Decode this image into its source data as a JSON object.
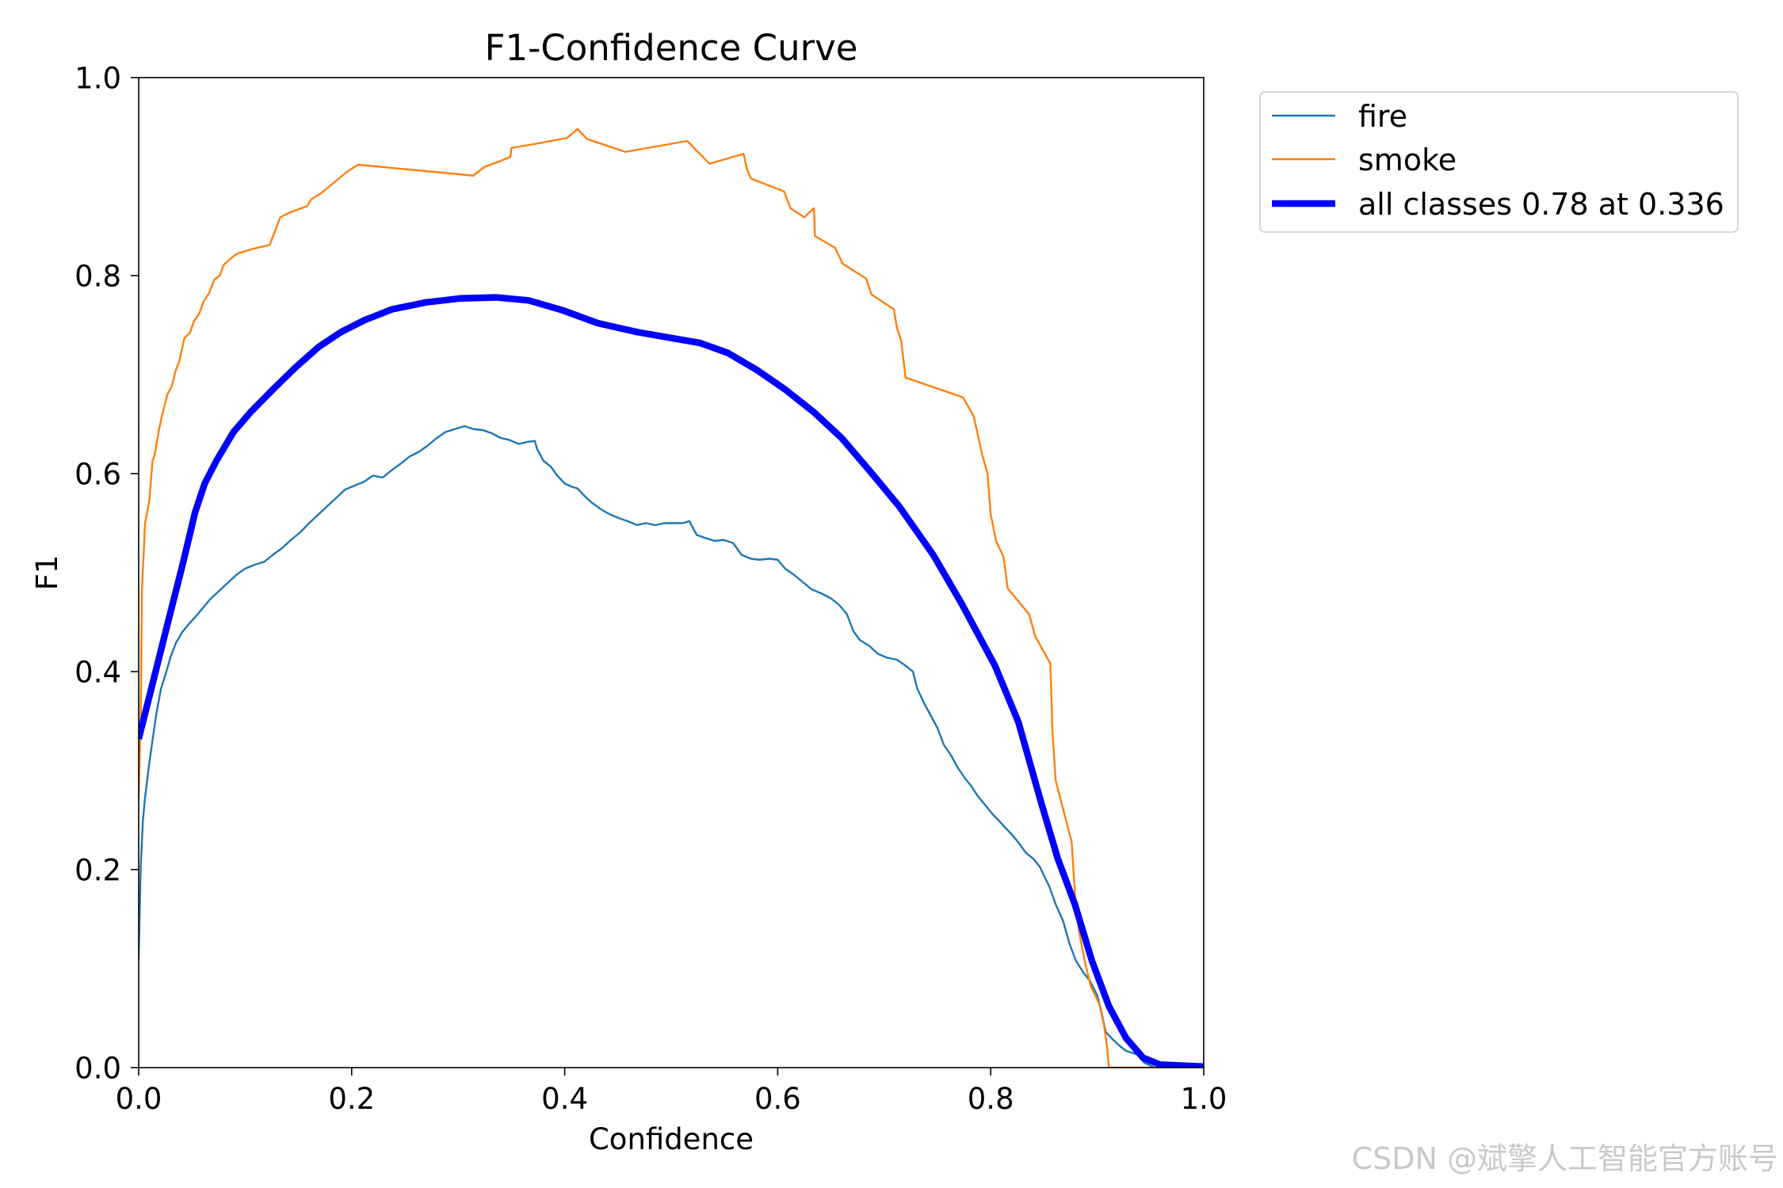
{
  "chart_data": {
    "type": "line",
    "title": "F1-Confidence Curve",
    "xlabel": "Confidence",
    "ylabel": "F1",
    "xlim": [
      0,
      1
    ],
    "ylim": [
      0,
      1
    ],
    "xticks": [
      0,
      0.2,
      0.4,
      0.6,
      0.8,
      1.0
    ],
    "xtick_labels": [
      "0.0",
      "0.2",
      "0.4",
      "0.6",
      "0.8",
      "1.0"
    ],
    "yticks": [
      0,
      0.2,
      0.4,
      0.6,
      0.8,
      1.0
    ],
    "ytick_labels": [
      "0.0",
      "0.2",
      "0.4",
      "0.6",
      "0.8",
      "1.0"
    ],
    "grid": false,
    "legend_loc": "upper-right-outside",
    "series": [
      {
        "name": "fire",
        "color": "#1f77b4",
        "points": [
          [
            0.0,
            0.11
          ],
          [
            0.002,
            0.205
          ],
          [
            0.004,
            0.25
          ],
          [
            0.006,
            0.273
          ],
          [
            0.01,
            0.308
          ],
          [
            0.013,
            0.331
          ],
          [
            0.017,
            0.36
          ],
          [
            0.021,
            0.383
          ],
          [
            0.026,
            0.4
          ],
          [
            0.03,
            0.415
          ],
          [
            0.035,
            0.429
          ],
          [
            0.041,
            0.44
          ],
          [
            0.047,
            0.448
          ],
          [
            0.053,
            0.455
          ],
          [
            0.06,
            0.464
          ],
          [
            0.067,
            0.473
          ],
          [
            0.075,
            0.481
          ],
          [
            0.083,
            0.489
          ],
          [
            0.092,
            0.498
          ],
          [
            0.1,
            0.504
          ],
          [
            0.109,
            0.508
          ],
          [
            0.118,
            0.511
          ],
          [
            0.126,
            0.518
          ],
          [
            0.135,
            0.525
          ],
          [
            0.143,
            0.533
          ],
          [
            0.152,
            0.541
          ],
          [
            0.16,
            0.55
          ],
          [
            0.169,
            0.559
          ],
          [
            0.177,
            0.567
          ],
          [
            0.186,
            0.576
          ],
          [
            0.194,
            0.584
          ],
          [
            0.203,
            0.588
          ],
          [
            0.212,
            0.592
          ],
          [
            0.22,
            0.598
          ],
          [
            0.229,
            0.596
          ],
          [
            0.237,
            0.603
          ],
          [
            0.246,
            0.61
          ],
          [
            0.254,
            0.617
          ],
          [
            0.263,
            0.622
          ],
          [
            0.271,
            0.628
          ],
          [
            0.28,
            0.636
          ],
          [
            0.288,
            0.642
          ],
          [
            0.297,
            0.645
          ],
          [
            0.306,
            0.648
          ],
          [
            0.314,
            0.645
          ],
          [
            0.323,
            0.644
          ],
          [
            0.331,
            0.641
          ],
          [
            0.34,
            0.636
          ],
          [
            0.348,
            0.634
          ],
          [
            0.357,
            0.63
          ],
          [
            0.365,
            0.632
          ],
          [
            0.372,
            0.633
          ],
          [
            0.374,
            0.625
          ],
          [
            0.38,
            0.613
          ],
          [
            0.387,
            0.607
          ],
          [
            0.393,
            0.598
          ],
          [
            0.4,
            0.59
          ],
          [
            0.406,
            0.587
          ],
          [
            0.412,
            0.585
          ],
          [
            0.419,
            0.577
          ],
          [
            0.425,
            0.571
          ],
          [
            0.434,
            0.564
          ],
          [
            0.442,
            0.559
          ],
          [
            0.451,
            0.555
          ],
          [
            0.459,
            0.552
          ],
          [
            0.468,
            0.548
          ],
          [
            0.476,
            0.55
          ],
          [
            0.485,
            0.548
          ],
          [
            0.494,
            0.55
          ],
          [
            0.502,
            0.55
          ],
          [
            0.511,
            0.55
          ],
          [
            0.517,
            0.552
          ],
          [
            0.524,
            0.538
          ],
          [
            0.532,
            0.535
          ],
          [
            0.541,
            0.532
          ],
          [
            0.549,
            0.533
          ],
          [
            0.558,
            0.53
          ],
          [
            0.566,
            0.518
          ],
          [
            0.575,
            0.514
          ],
          [
            0.583,
            0.513
          ],
          [
            0.592,
            0.514
          ],
          [
            0.6,
            0.513
          ],
          [
            0.607,
            0.504
          ],
          [
            0.615,
            0.498
          ],
          [
            0.624,
            0.49
          ],
          [
            0.632,
            0.483
          ],
          [
            0.641,
            0.479
          ],
          [
            0.65,
            0.474
          ],
          [
            0.658,
            0.467
          ],
          [
            0.665,
            0.458
          ],
          [
            0.671,
            0.441
          ],
          [
            0.677,
            0.432
          ],
          [
            0.686,
            0.426
          ],
          [
            0.694,
            0.418
          ],
          [
            0.703,
            0.414
          ],
          [
            0.712,
            0.412
          ],
          [
            0.72,
            0.406
          ],
          [
            0.727,
            0.4
          ],
          [
            0.731,
            0.383
          ],
          [
            0.737,
            0.369
          ],
          [
            0.744,
            0.355
          ],
          [
            0.75,
            0.343
          ],
          [
            0.756,
            0.326
          ],
          [
            0.763,
            0.315
          ],
          [
            0.769,
            0.303
          ],
          [
            0.776,
            0.292
          ],
          [
            0.782,
            0.284
          ],
          [
            0.788,
            0.274
          ],
          [
            0.795,
            0.265
          ],
          [
            0.801,
            0.257
          ],
          [
            0.808,
            0.249
          ],
          [
            0.814,
            0.242
          ],
          [
            0.821,
            0.234
          ],
          [
            0.827,
            0.226
          ],
          [
            0.833,
            0.217
          ],
          [
            0.84,
            0.211
          ],
          [
            0.846,
            0.203
          ],
          [
            0.85,
            0.194
          ],
          [
            0.855,
            0.183
          ],
          [
            0.861,
            0.165
          ],
          [
            0.868,
            0.148
          ],
          [
            0.874,
            0.125
          ],
          [
            0.88,
            0.108
          ],
          [
            0.887,
            0.096
          ],
          [
            0.893,
            0.088
          ],
          [
            0.9,
            0.073
          ],
          [
            0.904,
            0.056
          ],
          [
            0.908,
            0.036
          ],
          [
            0.915,
            0.028
          ],
          [
            0.921,
            0.022
          ],
          [
            0.927,
            0.017
          ],
          [
            0.938,
            0.013
          ],
          [
            0.944,
            0.005
          ],
          [
            0.954,
            0.0
          ],
          [
            1.0,
            0.0
          ]
        ]
      },
      {
        "name": "smoke",
        "color": "#ff7f0e",
        "points": [
          [
            0.0,
            0.27
          ],
          [
            0.002,
            0.36
          ],
          [
            0.003,
            0.481
          ],
          [
            0.006,
            0.55
          ],
          [
            0.01,
            0.573
          ],
          [
            0.013,
            0.613
          ],
          [
            0.015,
            0.619
          ],
          [
            0.019,
            0.644
          ],
          [
            0.022,
            0.659
          ],
          [
            0.027,
            0.68
          ],
          [
            0.031,
            0.688
          ],
          [
            0.035,
            0.705
          ],
          [
            0.038,
            0.713
          ],
          [
            0.043,
            0.737
          ],
          [
            0.048,
            0.742
          ],
          [
            0.052,
            0.754
          ],
          [
            0.057,
            0.762
          ],
          [
            0.061,
            0.774
          ],
          [
            0.066,
            0.782
          ],
          [
            0.071,
            0.796
          ],
          [
            0.076,
            0.8
          ],
          [
            0.08,
            0.811
          ],
          [
            0.085,
            0.816
          ],
          [
            0.092,
            0.822
          ],
          [
            0.107,
            0.827
          ],
          [
            0.123,
            0.831
          ],
          [
            0.127,
            0.842
          ],
          [
            0.133,
            0.859
          ],
          [
            0.14,
            0.863
          ],
          [
            0.15,
            0.867
          ],
          [
            0.158,
            0.87
          ],
          [
            0.162,
            0.877
          ],
          [
            0.171,
            0.883
          ],
          [
            0.18,
            0.891
          ],
          [
            0.189,
            0.899
          ],
          [
            0.197,
            0.906
          ],
          [
            0.206,
            0.912
          ],
          [
            0.314,
            0.901
          ],
          [
            0.325,
            0.91
          ],
          [
            0.338,
            0.915
          ],
          [
            0.349,
            0.92
          ],
          [
            0.35,
            0.929
          ],
          [
            0.372,
            0.933
          ],
          [
            0.402,
            0.939
          ],
          [
            0.412,
            0.948
          ],
          [
            0.421,
            0.938
          ],
          [
            0.457,
            0.925
          ],
          [
            0.515,
            0.936
          ],
          [
            0.536,
            0.913
          ],
          [
            0.568,
            0.923
          ],
          [
            0.571,
            0.908
          ],
          [
            0.575,
            0.898
          ],
          [
            0.606,
            0.885
          ],
          [
            0.612,
            0.868
          ],
          [
            0.625,
            0.859
          ],
          [
            0.634,
            0.868
          ],
          [
            0.635,
            0.84
          ],
          [
            0.654,
            0.828
          ],
          [
            0.661,
            0.812
          ],
          [
            0.683,
            0.797
          ],
          [
            0.688,
            0.781
          ],
          [
            0.709,
            0.766
          ],
          [
            0.712,
            0.747
          ],
          [
            0.716,
            0.734
          ],
          [
            0.72,
            0.697
          ],
          [
            0.774,
            0.677
          ],
          [
            0.784,
            0.658
          ],
          [
            0.792,
            0.619
          ],
          [
            0.797,
            0.6
          ],
          [
            0.8,
            0.559
          ],
          [
            0.805,
            0.532
          ],
          [
            0.812,
            0.516
          ],
          [
            0.816,
            0.484
          ],
          [
            0.836,
            0.458
          ],
          [
            0.842,
            0.435
          ],
          [
            0.853,
            0.414
          ],
          [
            0.856,
            0.408
          ],
          [
            0.858,
            0.338
          ],
          [
            0.861,
            0.29
          ],
          [
            0.876,
            0.228
          ],
          [
            0.88,
            0.16
          ],
          [
            0.883,
            0.137
          ],
          [
            0.889,
            0.104
          ],
          [
            0.894,
            0.082
          ],
          [
            0.902,
            0.064
          ],
          [
            0.906,
            0.045
          ],
          [
            0.909,
            0.024
          ],
          [
            0.911,
            0.0
          ],
          [
            1.0,
            0.0
          ]
        ]
      },
      {
        "name": "all classes 0.78 at 0.336",
        "color": "#0000ff",
        "points": [
          [
            0.0,
            0.332
          ],
          [
            0.014,
            0.392
          ],
          [
            0.028,
            0.452
          ],
          [
            0.041,
            0.507
          ],
          [
            0.053,
            0.561
          ],
          [
            0.062,
            0.59
          ],
          [
            0.073,
            0.613
          ],
          [
            0.089,
            0.642
          ],
          [
            0.105,
            0.662
          ],
          [
            0.126,
            0.685
          ],
          [
            0.147,
            0.707
          ],
          [
            0.169,
            0.728
          ],
          [
            0.19,
            0.743
          ],
          [
            0.212,
            0.755
          ],
          [
            0.238,
            0.766
          ],
          [
            0.27,
            0.773
          ],
          [
            0.302,
            0.777
          ],
          [
            0.336,
            0.778
          ],
          [
            0.366,
            0.775
          ],
          [
            0.398,
            0.765
          ],
          [
            0.431,
            0.752
          ],
          [
            0.468,
            0.743
          ],
          [
            0.5,
            0.737
          ],
          [
            0.527,
            0.732
          ],
          [
            0.553,
            0.722
          ],
          [
            0.58,
            0.705
          ],
          [
            0.607,
            0.685
          ],
          [
            0.634,
            0.662
          ],
          [
            0.66,
            0.636
          ],
          [
            0.687,
            0.602
          ],
          [
            0.714,
            0.567
          ],
          [
            0.746,
            0.518
          ],
          [
            0.772,
            0.47
          ],
          [
            0.804,
            0.406
          ],
          [
            0.826,
            0.349
          ],
          [
            0.847,
            0.269
          ],
          [
            0.863,
            0.211
          ],
          [
            0.879,
            0.165
          ],
          [
            0.895,
            0.108
          ],
          [
            0.911,
            0.062
          ],
          [
            0.927,
            0.03
          ],
          [
            0.943,
            0.01
          ],
          [
            0.959,
            0.003
          ],
          [
            1.0,
            0.001
          ]
        ]
      }
    ]
  },
  "watermark": "CSDN @斌擎人工智能官方账号"
}
